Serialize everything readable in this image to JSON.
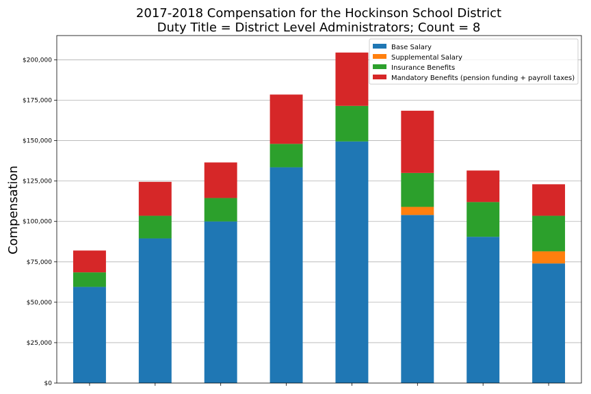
{
  "chart_data": {
    "type": "bar",
    "stacked": true,
    "title": [
      "2017-2018 Compensation for the Hockinson School District",
      "Duty Title = District Level Administrators; Count = 8"
    ],
    "xlabel": "",
    "ylabel": "Compensation",
    "ylim": [
      0,
      215000
    ],
    "yticks": [
      0,
      25000,
      50000,
      75000,
      100000,
      125000,
      150000,
      175000,
      200000
    ],
    "ytick_labels": [
      "$0",
      "$25,000",
      "$50,000",
      "$75,000",
      "$100,000",
      "$125,000",
      "$150,000",
      "$175,000",
      "$200,000"
    ],
    "categories": [
      "",
      "",
      "",
      "",
      "",
      "",
      "",
      ""
    ],
    "grid": "horizontal",
    "legend_position": "top-right",
    "series": [
      {
        "name": "Base Salary",
        "color": "#1f77b4",
        "values": [
          59500,
          89500,
          100000,
          133500,
          149500,
          104000,
          90500,
          74000
        ]
      },
      {
        "name": "Supplemental Salary",
        "color": "#ff7f0e",
        "values": [
          0,
          0,
          0,
          0,
          0,
          5000,
          0,
          7500
        ]
      },
      {
        "name": "Insurance Benefits",
        "color": "#2ca02c",
        "values": [
          9000,
          14000,
          14500,
          14500,
          22000,
          21000,
          21500,
          22000
        ]
      },
      {
        "name": "Mandatory Benefits (pension funding + payroll taxes)",
        "color": "#d62728",
        "values": [
          13500,
          21000,
          22000,
          30500,
          33000,
          38500,
          19500,
          19500
        ]
      }
    ]
  }
}
